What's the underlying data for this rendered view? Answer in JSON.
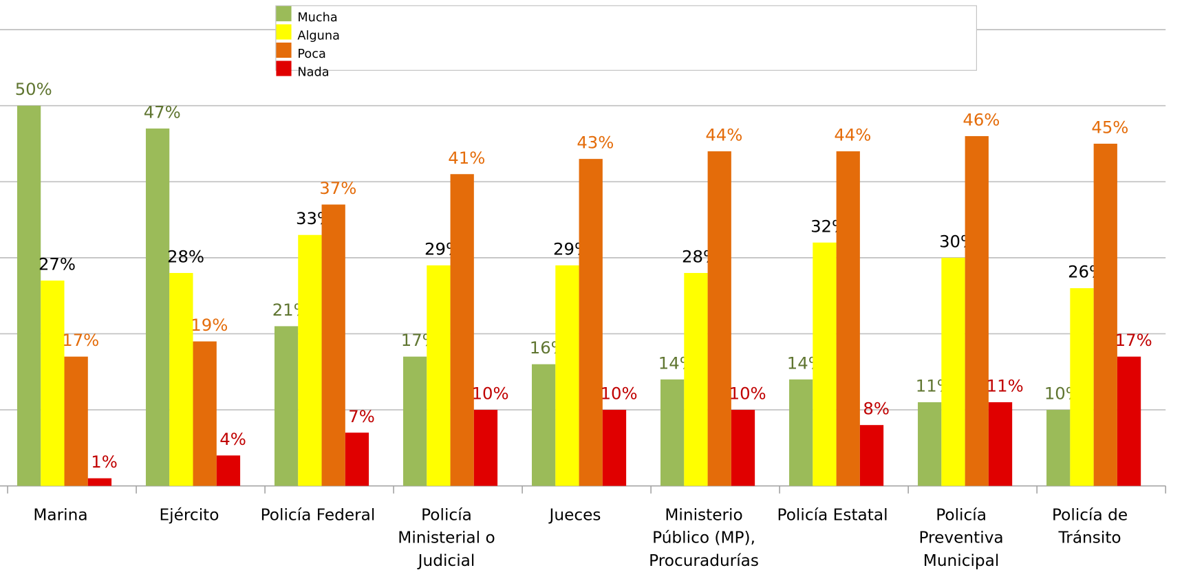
{
  "chart_data": {
    "type": "bar",
    "categories": [
      "Marina",
      "Ejército",
      "Policía Federal",
      "Policía Ministerial o Judicial",
      "Jueces",
      "Ministerio Público (MP), Procuradurías",
      "Policía Estatal",
      "Policía Preventiva Municipal",
      "Policía de Tránsito"
    ],
    "series": [
      {
        "name": "Mucha",
        "color": "#9bbb59",
        "label_color": "#5f7530",
        "values": [
          50,
          47,
          21,
          17,
          16,
          14,
          14,
          11,
          10
        ],
        "value_labels": [
          "50%",
          "47%",
          "21%",
          "17%",
          "16%",
          "14%",
          "14%",
          "11%",
          "10%"
        ]
      },
      {
        "name": "Alguna",
        "color": "#ffff00",
        "label_color": "#000000",
        "values": [
          27,
          28,
          33,
          29,
          29,
          28,
          32,
          30,
          26
        ],
        "value_labels": [
          "27%",
          "28%",
          "33%",
          "29%",
          "29%",
          "28%",
          "32%",
          "30%",
          "26%"
        ]
      },
      {
        "name": "Poca",
        "color": "#e46c0a",
        "label_color": "#e46c0a",
        "values": [
          17,
          19,
          37,
          41,
          43,
          44,
          44,
          46,
          45
        ],
        "value_labels": [
          "17%",
          "19%",
          "37%",
          "41%",
          "43%",
          "44%",
          "44%",
          "46%",
          "45%"
        ]
      },
      {
        "name": "Nada",
        "color": "#e00000",
        "label_color": "#c00000",
        "values": [
          1,
          4,
          7,
          10,
          10,
          10,
          8,
          11,
          17
        ],
        "value_labels": [
          "1%",
          "4%",
          "7%",
          "10%",
          "10%",
          "10%",
          "8%",
          "11%",
          "17%"
        ]
      }
    ],
    "ylim": [
      0,
      60
    ],
    "yticks": [
      0,
      10,
      20,
      30,
      40,
      50,
      60
    ],
    "grid": true,
    "legend": "top"
  }
}
